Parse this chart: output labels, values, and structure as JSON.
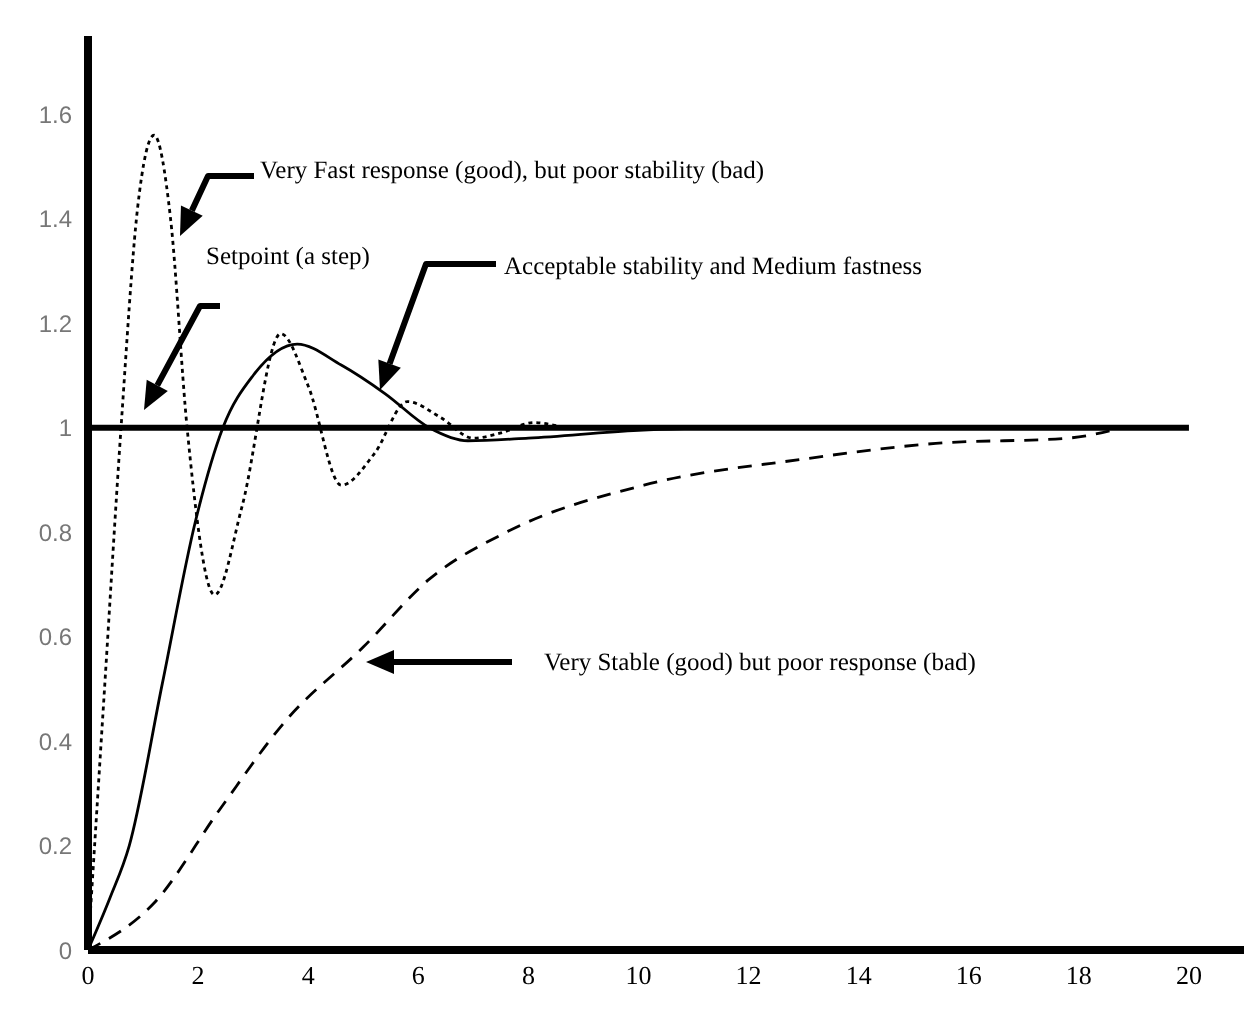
{
  "chart_data": {
    "type": "line",
    "xlim": [
      0,
      21
    ],
    "ylim": [
      0,
      1.75
    ],
    "xticks": [
      0,
      2,
      4,
      6,
      8,
      10,
      12,
      14,
      16,
      18,
      20
    ],
    "yticks": [
      0,
      0.2,
      0.4,
      0.6,
      0.8,
      1,
      1.2,
      1.4,
      1.6
    ],
    "grid": false,
    "legend": false,
    "marker": "none",
    "series": [
      {
        "color": "#000000",
        "line_style": "solid",
        "x": [
          0,
          20
        ],
        "values": [
          1,
          1
        ]
      },
      {
        "color": "#000000",
        "line_style": "dotted",
        "x": [
          0,
          0.3,
          0.6,
          0.9,
          1.2,
          1.5,
          1.8,
          2.3,
          2.8,
          3.5,
          4.0,
          4.6,
          5.2,
          5.8,
          6.4,
          7.0,
          7.5,
          8.1,
          8.8,
          10,
          14
        ],
        "values": [
          0,
          0.5,
          1.0,
          1.42,
          1.56,
          1.4,
          1.0,
          0.68,
          0.85,
          1.18,
          1.08,
          0.89,
          0.95,
          1.05,
          1.02,
          0.98,
          0.99,
          1.01,
          1.0,
          1.0,
          1.0
        ]
      },
      {
        "color": "#000000",
        "line_style": "solid",
        "x": [
          0,
          0.4,
          0.75,
          1.35,
          1.95,
          2.45,
          3.0,
          3.8,
          4.6,
          5.4,
          6.2,
          6.9,
          8,
          10,
          12
        ],
        "values": [
          0,
          0.1,
          0.2,
          0.51,
          0.82,
          1.0,
          1.1,
          1.16,
          1.12,
          1.065,
          1.0,
          0.975,
          0.98,
          0.995,
          1.0
        ]
      },
      {
        "color": "#000000",
        "line_style": "dashed",
        "x": [
          0,
          1.2,
          2.4,
          3.6,
          5.0,
          6.2,
          7.6,
          10.1,
          13,
          15.4,
          17.8,
          18.8
        ],
        "values": [
          0,
          0.09,
          0.27,
          0.44,
          0.58,
          0.71,
          0.8,
          0.89,
          0.94,
          0.97,
          0.98,
          1.0
        ]
      }
    ],
    "annotations": [
      "Very Fast response (good), but poor stability (bad)",
      "Setpoint (a step)",
      "Acceptable stability and Medium fastness",
      "Very Stable (good) but poor response (bad)"
    ]
  }
}
